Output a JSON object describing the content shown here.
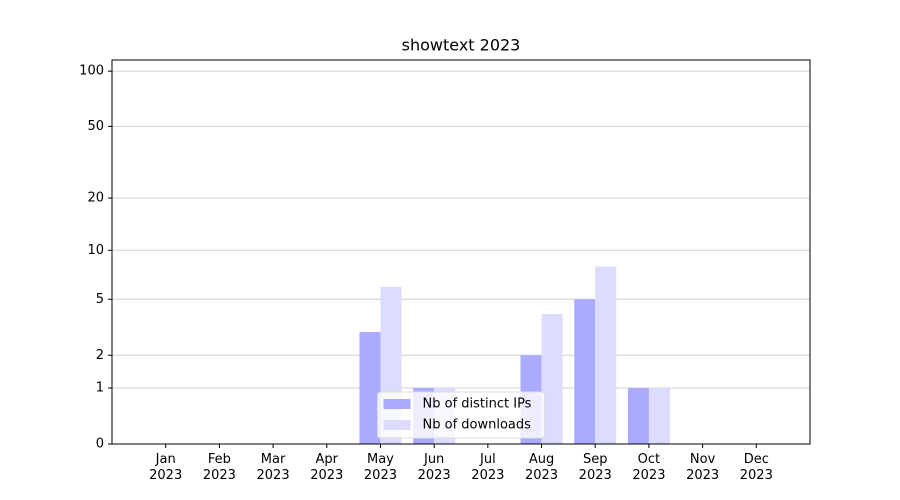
{
  "chart_data": {
    "type": "bar",
    "title": "showtext 2023",
    "categories": [
      "Jan\n2023",
      "Feb\n2023",
      "Mar\n2023",
      "Apr\n2023",
      "May\n2023",
      "Jun\n2023",
      "Jul\n2023",
      "Aug\n2023",
      "Sep\n2023",
      "Oct\n2023",
      "Nov\n2023",
      "Dec\n2023"
    ],
    "series": [
      {
        "name": "Nb of distinct IPs",
        "color": "#aaaaff",
        "values": [
          0,
          0,
          0,
          0,
          3,
          1,
          0,
          2,
          5,
          1,
          0,
          0
        ]
      },
      {
        "name": "Nb of downloads",
        "color": "#dcdcff",
        "values": [
          0,
          0,
          0,
          0,
          6,
          1,
          0,
          4,
          8,
          1,
          0,
          0
        ]
      }
    ],
    "yscale": "log1p",
    "ylim": [
      0,
      115
    ],
    "yticks": [
      0,
      1,
      2,
      5,
      10,
      20,
      50,
      100
    ],
    "grid": true,
    "legend": "lower center"
  }
}
